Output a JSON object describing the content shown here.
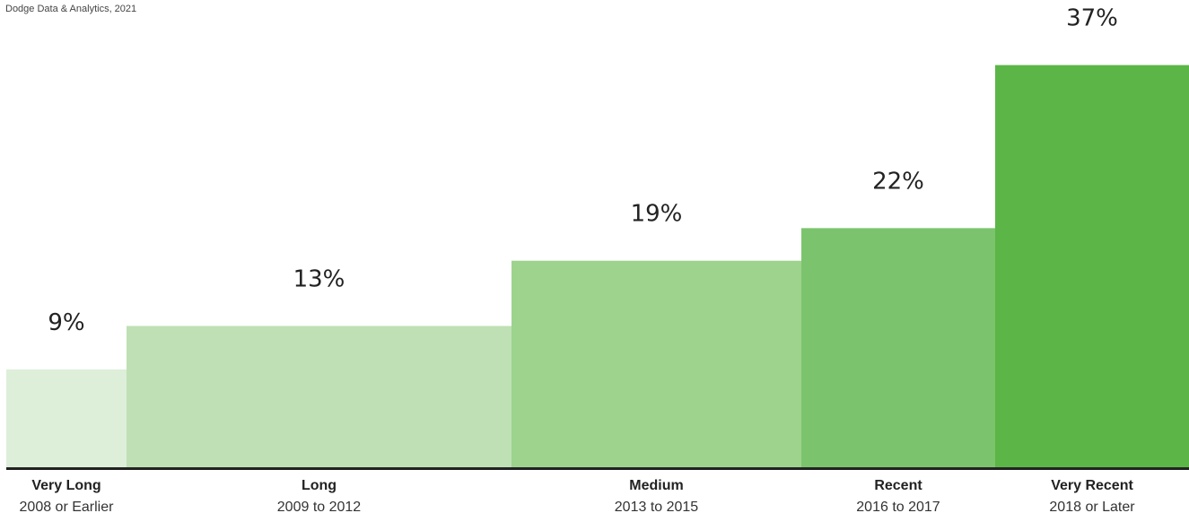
{
  "source": "Dodge Data & Analytics, 2021",
  "chart_data": {
    "type": "bar",
    "title": "",
    "xlabel": "",
    "ylabel": "",
    "ylim": [
      0,
      40
    ],
    "grid": false,
    "value_suffix": "%",
    "categories": [
      {
        "name": "Very Long",
        "range": "2008 or Earlier",
        "value": 9,
        "label": "9%",
        "color": "#ddeed9"
      },
      {
        "name": "Long",
        "range": "2009 to 2012",
        "value": 13,
        "label": "13%",
        "color": "#bfe0b5"
      },
      {
        "name": "Medium",
        "range": "2013 to 2015",
        "value": 19,
        "label": "19%",
        "color": "#9dd38d"
      },
      {
        "name": "Recent",
        "range": "2016 to 2017",
        "value": 22,
        "label": "22%",
        "color": "#7bc46d"
      },
      {
        "name": "Very Recent",
        "range": "2018 or Later",
        "value": 37,
        "label": "37%",
        "color": "#5bb547"
      }
    ],
    "baseline_color": "#222222"
  }
}
